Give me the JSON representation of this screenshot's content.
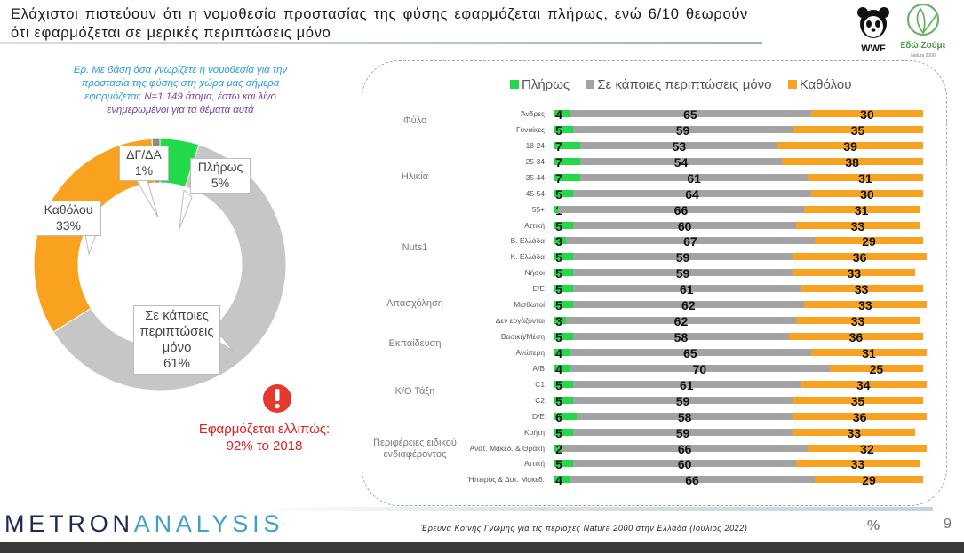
{
  "title": "Ελάχιστοι πιστεύουν ότι η νομοθεσία προστασίας της φύσης εφαρμόζεται πλήρως, ενώ 6/10 θεωρούν ότι εφαρμόζεται σε μερικές περιπτώσεις μόνο",
  "question": {
    "part1": "Ερ. Με βάση όσα γνωρίζετε η νομοθεσία για την προστασία της φύσης στη χώρα μας σήμερα εφαρμόζεται;",
    "part2": "N=1.149 άτομα, έστω και λίγο ενημερωμένοι για τα θέματα αυτά"
  },
  "logos": {
    "wwf": "WWF",
    "edo": "Εδώ Ζούμε",
    "edo_sub": "Natura 2000"
  },
  "alert": "Εφαρμόζεται ελλιπώς: 92% το 2018",
  "brand": {
    "part1": "METRON",
    "part2": "ANALYSIS"
  },
  "footnote": "Έρευνα Κοινής Γνώμης για τις περιοχές Natura 2000 στην Ελλάδα (Ιούλιος 2022)",
  "page_number": "9",
  "colors": {
    "green": "#22d94a",
    "gray": "#a3a3a3",
    "orange": "#f8a21f"
  },
  "chart_data": [
    {
      "type": "pie",
      "donut": true,
      "slices": [
        {
          "label": "Πλήρως",
          "value": 5,
          "pct_label": "5%",
          "color": "#22d94a"
        },
        {
          "label": "Σε κάποιες περιπτώσεις μόνο",
          "value": 61,
          "pct_label": "61%",
          "color": "#c6c6c6"
        },
        {
          "label": "Καθόλου",
          "value": 33,
          "pct_label": "33%",
          "color": "#f8a21f"
        },
        {
          "label": "ΔΓ/ΔΑ",
          "value": 1,
          "pct_label": "1%",
          "color": "#8a8a8a"
        }
      ]
    },
    {
      "type": "bar",
      "orientation": "horizontal",
      "stacked": true,
      "xlim": [
        0,
        100
      ],
      "legend": [
        "Πλήρως",
        "Σε κάποιες περιπτώσεις μόνο",
        "Καθόλου"
      ],
      "groups": [
        {
          "label": "Φύλο",
          "rows": [
            0,
            1
          ]
        },
        {
          "label": "Ηλικία",
          "rows": [
            2,
            3,
            4,
            5,
            6
          ]
        },
        {
          "label": "Nuts1",
          "rows": [
            7,
            8,
            9,
            10
          ]
        },
        {
          "label": "Απασχόληση",
          "rows": [
            11,
            12,
            13
          ]
        },
        {
          "label": "Εκπαίδευση",
          "rows": [
            14,
            15
          ]
        },
        {
          "label": "Κ/Ο Τάξη",
          "rows": [
            16,
            17,
            18,
            19
          ]
        },
        {
          "label": "Περιφέρειες ειδικού ενδιαφέροντος",
          "rows": [
            20,
            21,
            22,
            23
          ]
        }
      ],
      "rows": [
        {
          "label": "Άνδρες",
          "values": [
            4,
            65,
            30
          ]
        },
        {
          "label": "Γυναίκες",
          "values": [
            5,
            59,
            35
          ]
        },
        {
          "label": "18-24",
          "values": [
            7,
            53,
            39
          ]
        },
        {
          "label": "25-34",
          "values": [
            7,
            54,
            38
          ]
        },
        {
          "label": "35-44",
          "values": [
            7,
            61,
            31
          ]
        },
        {
          "label": "45-54",
          "values": [
            5,
            64,
            30
          ]
        },
        {
          "label": "55+",
          "values": [
            1,
            66,
            31
          ]
        },
        {
          "label": "Αττική",
          "values": [
            5,
            60,
            33
          ]
        },
        {
          "label": "Β. Ελλάδα",
          "values": [
            3,
            67,
            29
          ]
        },
        {
          "label": "Κ. Ελλάδα",
          "values": [
            5,
            59,
            36
          ]
        },
        {
          "label": "Νήσοι",
          "values": [
            5,
            59,
            33
          ]
        },
        {
          "label": "Ε/Ε",
          "values": [
            5,
            61,
            33
          ]
        },
        {
          "label": "Μισθωτοί",
          "values": [
            5,
            62,
            33
          ]
        },
        {
          "label": "Δεν εργάζονται",
          "values": [
            3,
            62,
            33
          ]
        },
        {
          "label": "Βασική/Μέση",
          "values": [
            5,
            58,
            36
          ]
        },
        {
          "label": "Ανώτερη",
          "values": [
            4,
            65,
            31
          ]
        },
        {
          "label": "Α/Β",
          "values": [
            4,
            70,
            25
          ]
        },
        {
          "label": "C1",
          "values": [
            5,
            61,
            34
          ]
        },
        {
          "label": "C2",
          "values": [
            5,
            59,
            35
          ]
        },
        {
          "label": "D/E",
          "values": [
            6,
            58,
            36
          ]
        },
        {
          "label": "Κρήτη",
          "values": [
            5,
            59,
            33
          ]
        },
        {
          "label": "Ανατ. Μακεδ. & Θράκη",
          "values": [
            2,
            66,
            32
          ]
        },
        {
          "label": "Αττική",
          "values": [
            5,
            60,
            33
          ]
        },
        {
          "label": "Ήπειρος & Δυτ. Μακεδ.",
          "values": [
            4,
            66,
            29
          ]
        }
      ]
    }
  ]
}
